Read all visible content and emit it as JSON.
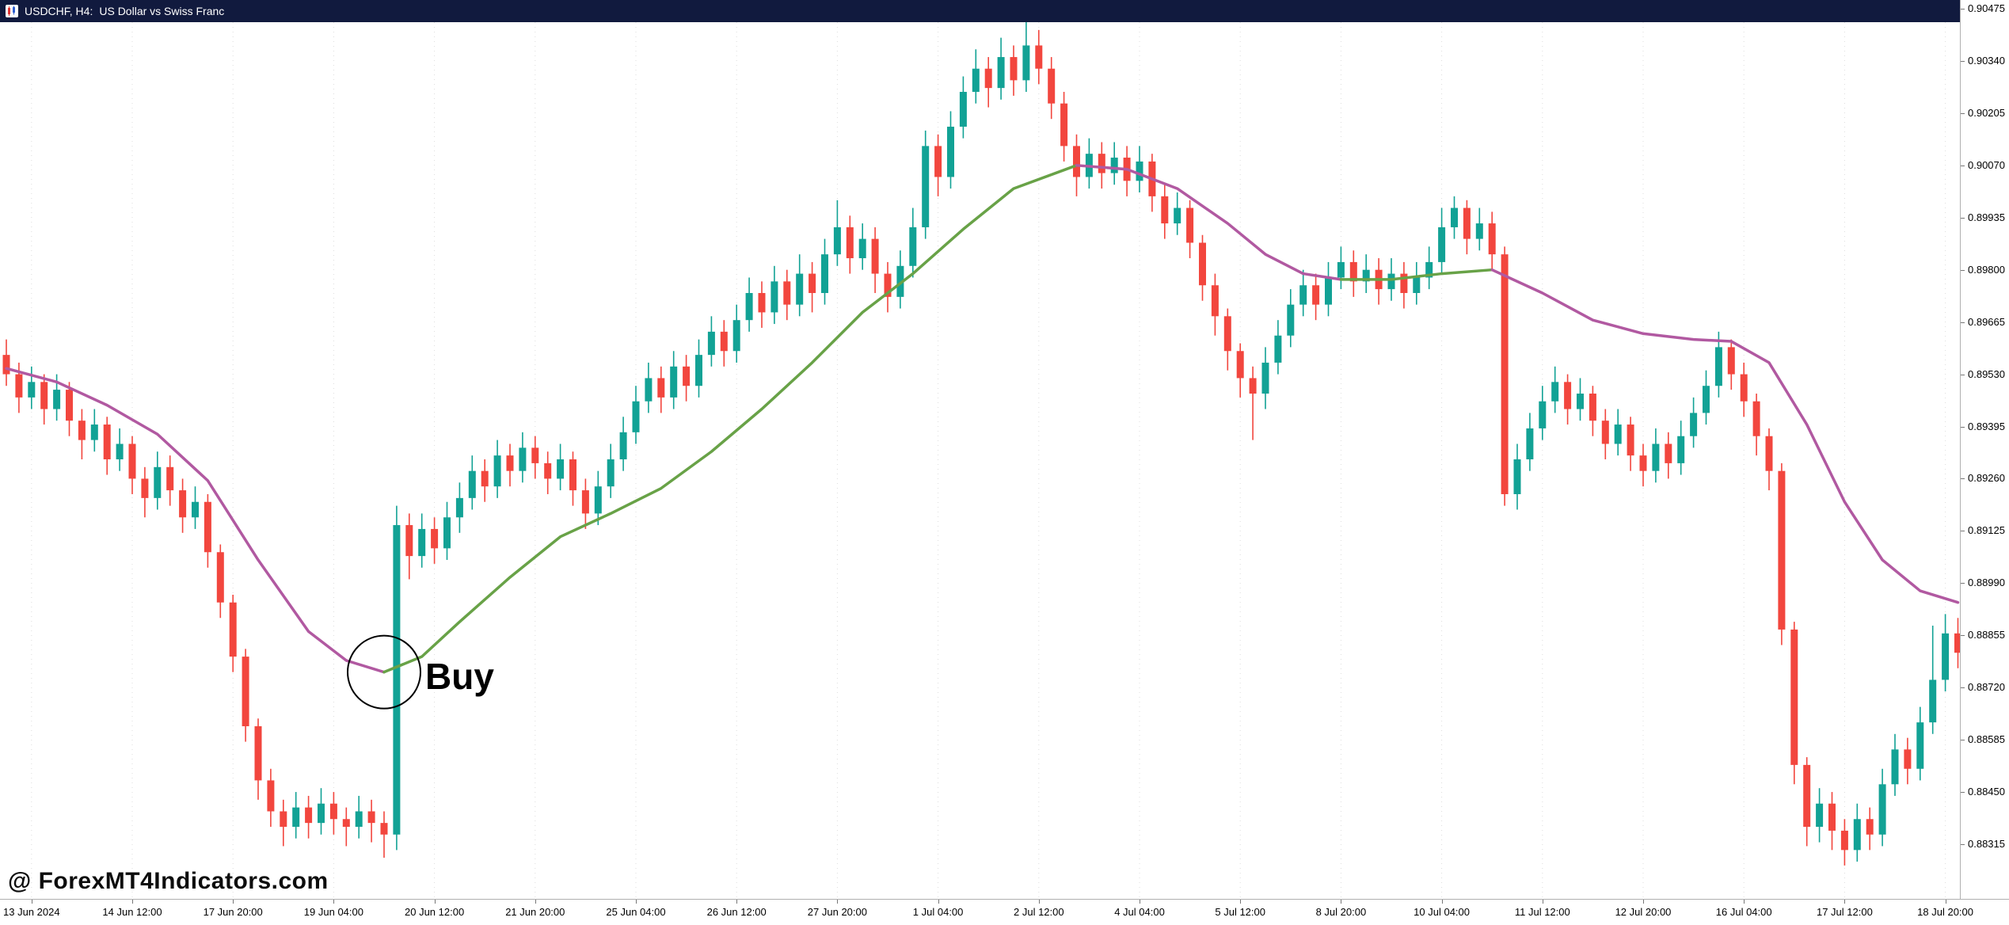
{
  "header": {
    "symbol": "USDCHF, H4:",
    "description": "US Dollar vs Swiss Franc"
  },
  "watermark": "@ ForexMT4Indicators.com",
  "annotation": {
    "label": "Buy",
    "candle_index": 30,
    "price": 0.8876
  },
  "colors": {
    "header_bg": "#111a3e",
    "bull": "#12a295",
    "bear": "#f2463e",
    "ma_up": "#68a247",
    "ma_down": "#b159a1",
    "grid": "#dddddd",
    "axis_text": "#000000",
    "circle": "#000000"
  },
  "chart_data": {
    "type": "candlestick",
    "title": "USDCHF, H4: US Dollar vs Swiss Franc",
    "symbol": "USDCHF",
    "timeframe": "H4",
    "ylim": [
      0.88315,
      0.90475
    ],
    "ohlc_format": [
      "open",
      "high",
      "low",
      "close"
    ],
    "candles": [
      [
        0.8958,
        0.8962,
        0.895,
        0.8953
      ],
      [
        0.8953,
        0.8956,
        0.8943,
        0.8947
      ],
      [
        0.8947,
        0.8955,
        0.8944,
        0.8951
      ],
      [
        0.8951,
        0.8953,
        0.894,
        0.8944
      ],
      [
        0.8944,
        0.8953,
        0.8941,
        0.8949
      ],
      [
        0.8949,
        0.8951,
        0.8937,
        0.8941
      ],
      [
        0.8941,
        0.8944,
        0.8931,
        0.8936
      ],
      [
        0.8936,
        0.8944,
        0.8933,
        0.894
      ],
      [
        0.894,
        0.8942,
        0.8927,
        0.8931
      ],
      [
        0.8931,
        0.8939,
        0.8928,
        0.8935
      ],
      [
        0.8935,
        0.8937,
        0.8922,
        0.8926
      ],
      [
        0.8926,
        0.8929,
        0.8916,
        0.8921
      ],
      [
        0.8921,
        0.8933,
        0.8918,
        0.8929
      ],
      [
        0.8929,
        0.8932,
        0.8919,
        0.8923
      ],
      [
        0.8923,
        0.8926,
        0.8912,
        0.8916
      ],
      [
        0.8916,
        0.8924,
        0.8913,
        0.892
      ],
      [
        0.892,
        0.8922,
        0.8903,
        0.8907
      ],
      [
        0.8907,
        0.8909,
        0.889,
        0.8894
      ],
      [
        0.8894,
        0.8896,
        0.8876,
        0.888
      ],
      [
        0.888,
        0.8882,
        0.8858,
        0.8862
      ],
      [
        0.8862,
        0.8864,
        0.8843,
        0.8848
      ],
      [
        0.8848,
        0.8851,
        0.8836,
        0.884
      ],
      [
        0.884,
        0.8843,
        0.8831,
        0.8836
      ],
      [
        0.8836,
        0.8845,
        0.8833,
        0.8841
      ],
      [
        0.8841,
        0.8844,
        0.8833,
        0.8837
      ],
      [
        0.8837,
        0.8846,
        0.8834,
        0.8842
      ],
      [
        0.8842,
        0.8845,
        0.8834,
        0.8838
      ],
      [
        0.8838,
        0.8841,
        0.8831,
        0.8836
      ],
      [
        0.8836,
        0.8844,
        0.8833,
        0.884
      ],
      [
        0.884,
        0.8843,
        0.8832,
        0.8837
      ],
      [
        0.8837,
        0.884,
        0.8828,
        0.8834
      ],
      [
        0.8834,
        0.8919,
        0.883,
        0.8914
      ],
      [
        0.8914,
        0.8917,
        0.89,
        0.8906
      ],
      [
        0.8906,
        0.8917,
        0.8903,
        0.8913
      ],
      [
        0.8913,
        0.8916,
        0.8904,
        0.8908
      ],
      [
        0.8908,
        0.892,
        0.8905,
        0.8916
      ],
      [
        0.8916,
        0.8925,
        0.8912,
        0.8921
      ],
      [
        0.8921,
        0.8932,
        0.8918,
        0.8928
      ],
      [
        0.8928,
        0.8931,
        0.892,
        0.8924
      ],
      [
        0.8924,
        0.8936,
        0.8921,
        0.8932
      ],
      [
        0.8932,
        0.8935,
        0.8924,
        0.8928
      ],
      [
        0.8928,
        0.8938,
        0.8925,
        0.8934
      ],
      [
        0.8934,
        0.8937,
        0.8926,
        0.893
      ],
      [
        0.893,
        0.8933,
        0.8922,
        0.8926
      ],
      [
        0.8926,
        0.8935,
        0.8923,
        0.8931
      ],
      [
        0.8931,
        0.8933,
        0.8919,
        0.8923
      ],
      [
        0.8923,
        0.8926,
        0.8913,
        0.8917
      ],
      [
        0.8917,
        0.8928,
        0.8914,
        0.8924
      ],
      [
        0.8924,
        0.8935,
        0.8921,
        0.8931
      ],
      [
        0.8931,
        0.8942,
        0.8928,
        0.8938
      ],
      [
        0.8938,
        0.895,
        0.8935,
        0.8946
      ],
      [
        0.8946,
        0.8956,
        0.8943,
        0.8952
      ],
      [
        0.8952,
        0.8955,
        0.8943,
        0.8947
      ],
      [
        0.8947,
        0.8959,
        0.8944,
        0.8955
      ],
      [
        0.8955,
        0.8958,
        0.8946,
        0.895
      ],
      [
        0.895,
        0.8962,
        0.8947,
        0.8958
      ],
      [
        0.8958,
        0.8968,
        0.8955,
        0.8964
      ],
      [
        0.8964,
        0.8967,
        0.8955,
        0.8959
      ],
      [
        0.8959,
        0.8971,
        0.8956,
        0.8967
      ],
      [
        0.8967,
        0.8978,
        0.8964,
        0.8974
      ],
      [
        0.8974,
        0.8977,
        0.8965,
        0.8969
      ],
      [
        0.8969,
        0.8981,
        0.8966,
        0.8977
      ],
      [
        0.8977,
        0.898,
        0.8967,
        0.8971
      ],
      [
        0.8971,
        0.8984,
        0.8968,
        0.8979
      ],
      [
        0.8979,
        0.8982,
        0.8969,
        0.8974
      ],
      [
        0.8974,
        0.8988,
        0.8971,
        0.8984
      ],
      [
        0.8984,
        0.8998,
        0.8981,
        0.8991
      ],
      [
        0.8991,
        0.8994,
        0.8979,
        0.8983
      ],
      [
        0.8983,
        0.8992,
        0.898,
        0.8988
      ],
      [
        0.8988,
        0.8991,
        0.8974,
        0.8979
      ],
      [
        0.8979,
        0.8982,
        0.8969,
        0.8973
      ],
      [
        0.8973,
        0.8985,
        0.897,
        0.8981
      ],
      [
        0.8981,
        0.8996,
        0.8978,
        0.8991
      ],
      [
        0.8991,
        0.9016,
        0.8988,
        0.9012
      ],
      [
        0.9012,
        0.9015,
        0.8999,
        0.9004
      ],
      [
        0.9004,
        0.9021,
        0.9001,
        0.9017
      ],
      [
        0.9017,
        0.903,
        0.9014,
        0.9026
      ],
      [
        0.9026,
        0.9037,
        0.9023,
        0.9032
      ],
      [
        0.9032,
        0.9035,
        0.9022,
        0.9027
      ],
      [
        0.9027,
        0.904,
        0.9024,
        0.9035
      ],
      [
        0.9035,
        0.9038,
        0.9025,
        0.9029
      ],
      [
        0.9029,
        0.9046,
        0.9026,
        0.9038
      ],
      [
        0.9038,
        0.9042,
        0.9028,
        0.9032
      ],
      [
        0.9032,
        0.9035,
        0.9019,
        0.9023
      ],
      [
        0.9023,
        0.9026,
        0.9008,
        0.9012
      ],
      [
        0.9012,
        0.9015,
        0.8999,
        0.9004
      ],
      [
        0.9004,
        0.9014,
        0.9001,
        0.901
      ],
      [
        0.901,
        0.9013,
        0.9001,
        0.9005
      ],
      [
        0.9005,
        0.9013,
        0.9002,
        0.9009
      ],
      [
        0.9009,
        0.9012,
        0.8999,
        0.9003
      ],
      [
        0.9003,
        0.9012,
        0.9,
        0.9008
      ],
      [
        0.9008,
        0.901,
        0.8995,
        0.8999
      ],
      [
        0.8999,
        0.9002,
        0.8988,
        0.8992
      ],
      [
        0.8992,
        0.9,
        0.8989,
        0.8996
      ],
      [
        0.8996,
        0.8998,
        0.8983,
        0.8987
      ],
      [
        0.8987,
        0.8989,
        0.8972,
        0.8976
      ],
      [
        0.8976,
        0.8979,
        0.8963,
        0.8968
      ],
      [
        0.8968,
        0.897,
        0.8954,
        0.8959
      ],
      [
        0.8959,
        0.8961,
        0.8947,
        0.8952
      ],
      [
        0.8952,
        0.8955,
        0.8936,
        0.8948
      ],
      [
        0.8948,
        0.896,
        0.8944,
        0.8956
      ],
      [
        0.8956,
        0.8967,
        0.8953,
        0.8963
      ],
      [
        0.8963,
        0.8975,
        0.896,
        0.8971
      ],
      [
        0.8971,
        0.898,
        0.8968,
        0.8976
      ],
      [
        0.8976,
        0.8979,
        0.8967,
        0.8971
      ],
      [
        0.8971,
        0.8982,
        0.8968,
        0.8978
      ],
      [
        0.8978,
        0.8986,
        0.8975,
        0.8982
      ],
      [
        0.8982,
        0.8985,
        0.8973,
        0.8977
      ],
      [
        0.8977,
        0.8984,
        0.8974,
        0.898
      ],
      [
        0.898,
        0.8983,
        0.8971,
        0.8975
      ],
      [
        0.8975,
        0.8983,
        0.8972,
        0.8979
      ],
      [
        0.8979,
        0.8982,
        0.897,
        0.8974
      ],
      [
        0.8974,
        0.8982,
        0.8971,
        0.8978
      ],
      [
        0.8978,
        0.8986,
        0.8975,
        0.8982
      ],
      [
        0.8982,
        0.8996,
        0.8979,
        0.8991
      ],
      [
        0.8991,
        0.8999,
        0.8988,
        0.8996
      ],
      [
        0.8996,
        0.8998,
        0.8984,
        0.8988
      ],
      [
        0.8988,
        0.8996,
        0.8985,
        0.8992
      ],
      [
        0.8992,
        0.8995,
        0.898,
        0.8984
      ],
      [
        0.8984,
        0.8986,
        0.8919,
        0.8922
      ],
      [
        0.8922,
        0.8935,
        0.8918,
        0.8931
      ],
      [
        0.8931,
        0.8943,
        0.8928,
        0.8939
      ],
      [
        0.8939,
        0.895,
        0.8936,
        0.8946
      ],
      [
        0.8946,
        0.8955,
        0.8943,
        0.8951
      ],
      [
        0.8951,
        0.8953,
        0.894,
        0.8944
      ],
      [
        0.8944,
        0.8952,
        0.8941,
        0.8948
      ],
      [
        0.8948,
        0.895,
        0.8937,
        0.8941
      ],
      [
        0.8941,
        0.8944,
        0.8931,
        0.8935
      ],
      [
        0.8935,
        0.8944,
        0.8932,
        0.894
      ],
      [
        0.894,
        0.8942,
        0.8928,
        0.8932
      ],
      [
        0.8932,
        0.8935,
        0.8924,
        0.8928
      ],
      [
        0.8928,
        0.8939,
        0.8925,
        0.8935
      ],
      [
        0.8935,
        0.8938,
        0.8926,
        0.893
      ],
      [
        0.893,
        0.8941,
        0.8927,
        0.8937
      ],
      [
        0.8937,
        0.8947,
        0.8934,
        0.8943
      ],
      [
        0.8943,
        0.8954,
        0.894,
        0.895
      ],
      [
        0.895,
        0.8964,
        0.8947,
        0.896
      ],
      [
        0.896,
        0.8962,
        0.8949,
        0.8953
      ],
      [
        0.8953,
        0.8956,
        0.8942,
        0.8946
      ],
      [
        0.8946,
        0.8948,
        0.8932,
        0.8937
      ],
      [
        0.8937,
        0.8939,
        0.8923,
        0.8928
      ],
      [
        0.8928,
        0.893,
        0.8883,
        0.8887
      ],
      [
        0.8887,
        0.8889,
        0.8847,
        0.8852
      ],
      [
        0.8852,
        0.8854,
        0.8831,
        0.8836
      ],
      [
        0.8836,
        0.8846,
        0.8832,
        0.8842
      ],
      [
        0.8842,
        0.8845,
        0.883,
        0.8835
      ],
      [
        0.8835,
        0.8838,
        0.8826,
        0.883
      ],
      [
        0.883,
        0.8842,
        0.8827,
        0.8838
      ],
      [
        0.8838,
        0.8841,
        0.883,
        0.8834
      ],
      [
        0.8834,
        0.8851,
        0.8831,
        0.8847
      ],
      [
        0.8847,
        0.886,
        0.8844,
        0.8856
      ],
      [
        0.8856,
        0.8859,
        0.8847,
        0.8851
      ],
      [
        0.8851,
        0.8867,
        0.8848,
        0.8863
      ],
      [
        0.8863,
        0.8888,
        0.886,
        0.8874
      ],
      [
        0.8874,
        0.8891,
        0.8871,
        0.8886
      ],
      [
        0.8886,
        0.889,
        0.8877,
        0.8881
      ]
    ],
    "ma": {
      "name": "trend-ma",
      "segments": [
        {
          "trend": "down",
          "points": [
            [
              0,
              0.89545
            ],
            [
              4,
              0.8951
            ],
            [
              8,
              0.8945
            ],
            [
              12,
              0.89375
            ],
            [
              16,
              0.89255
            ],
            [
              20,
              0.8905
            ],
            [
              24,
              0.88865
            ],
            [
              27,
              0.8879
            ],
            [
              30,
              0.8876
            ]
          ]
        },
        {
          "trend": "up",
          "points": [
            [
              30,
              0.8876
            ],
            [
              33,
              0.888
            ],
            [
              36,
              0.8889
            ],
            [
              40,
              0.89005
            ],
            [
              44,
              0.8911
            ],
            [
              48,
              0.8917
            ],
            [
              52,
              0.89235
            ],
            [
              56,
              0.8933
            ],
            [
              60,
              0.8944
            ],
            [
              64,
              0.8956
            ],
            [
              68,
              0.8969
            ],
            [
              72,
              0.8979
            ],
            [
              76,
              0.89905
            ],
            [
              80,
              0.9001
            ],
            [
              85,
              0.9007
            ]
          ]
        },
        {
          "trend": "down",
          "points": [
            [
              85,
              0.9007
            ],
            [
              89,
              0.9006
            ],
            [
              93,
              0.9001
            ],
            [
              97,
              0.8992
            ],
            [
              100,
              0.8984
            ],
            [
              103,
              0.8979
            ],
            [
              106,
              0.89775
            ]
          ]
        },
        {
          "trend": "up",
          "points": [
            [
              106,
              0.89775
            ],
            [
              110,
              0.89775
            ],
            [
              114,
              0.8979
            ],
            [
              118,
              0.898
            ]
          ]
        },
        {
          "trend": "down",
          "points": [
            [
              118,
              0.898
            ],
            [
              122,
              0.8974
            ],
            [
              126,
              0.8967
            ],
            [
              130,
              0.89635
            ],
            [
              134,
              0.8962
            ],
            [
              137,
              0.89615
            ],
            [
              140,
              0.8956
            ],
            [
              143,
              0.894
            ],
            [
              146,
              0.892
            ],
            [
              149,
              0.8905
            ],
            [
              152,
              0.8897
            ],
            [
              155,
              0.8894
            ]
          ]
        }
      ]
    },
    "y_axis": {
      "top_price": 0.90475,
      "step": 0.00135,
      "labels": [
        "0.90475",
        "0.90340",
        "0.90205",
        "0.90070",
        "0.89935",
        "0.89800",
        "0.89665",
        "0.89530",
        "0.89395",
        "0.89260",
        "0.89125",
        "0.88990",
        "0.88855",
        "0.88720",
        "0.88585",
        "0.88450",
        "0.88315"
      ]
    },
    "x_axis": {
      "tick_candle_indices": [
        2,
        10,
        18,
        26,
        34,
        42,
        50,
        58,
        66,
        74,
        82,
        90,
        98,
        106,
        114,
        122,
        130,
        138,
        146,
        154
      ],
      "labels": [
        "13 Jun 2024",
        "14 Jun 12:00",
        "17 Jun 20:00",
        "19 Jun 04:00",
        "20 Jun 12:00",
        "21 Jun 20:00",
        "25 Jun 04:00",
        "26 Jun 12:00",
        "27 Jun 20:00",
        "1 Jul 04:00",
        "2 Jul 12:00",
        "4 Jul 04:00",
        "5 Jul 12:00",
        "8 Jul 20:00",
        "10 Jul 04:00",
        "11 Jul 12:00",
        "12 Jul 20:00",
        "16 Jul 04:00",
        "17 Jul 12:00",
        "18 Jul 20:00"
      ]
    }
  }
}
